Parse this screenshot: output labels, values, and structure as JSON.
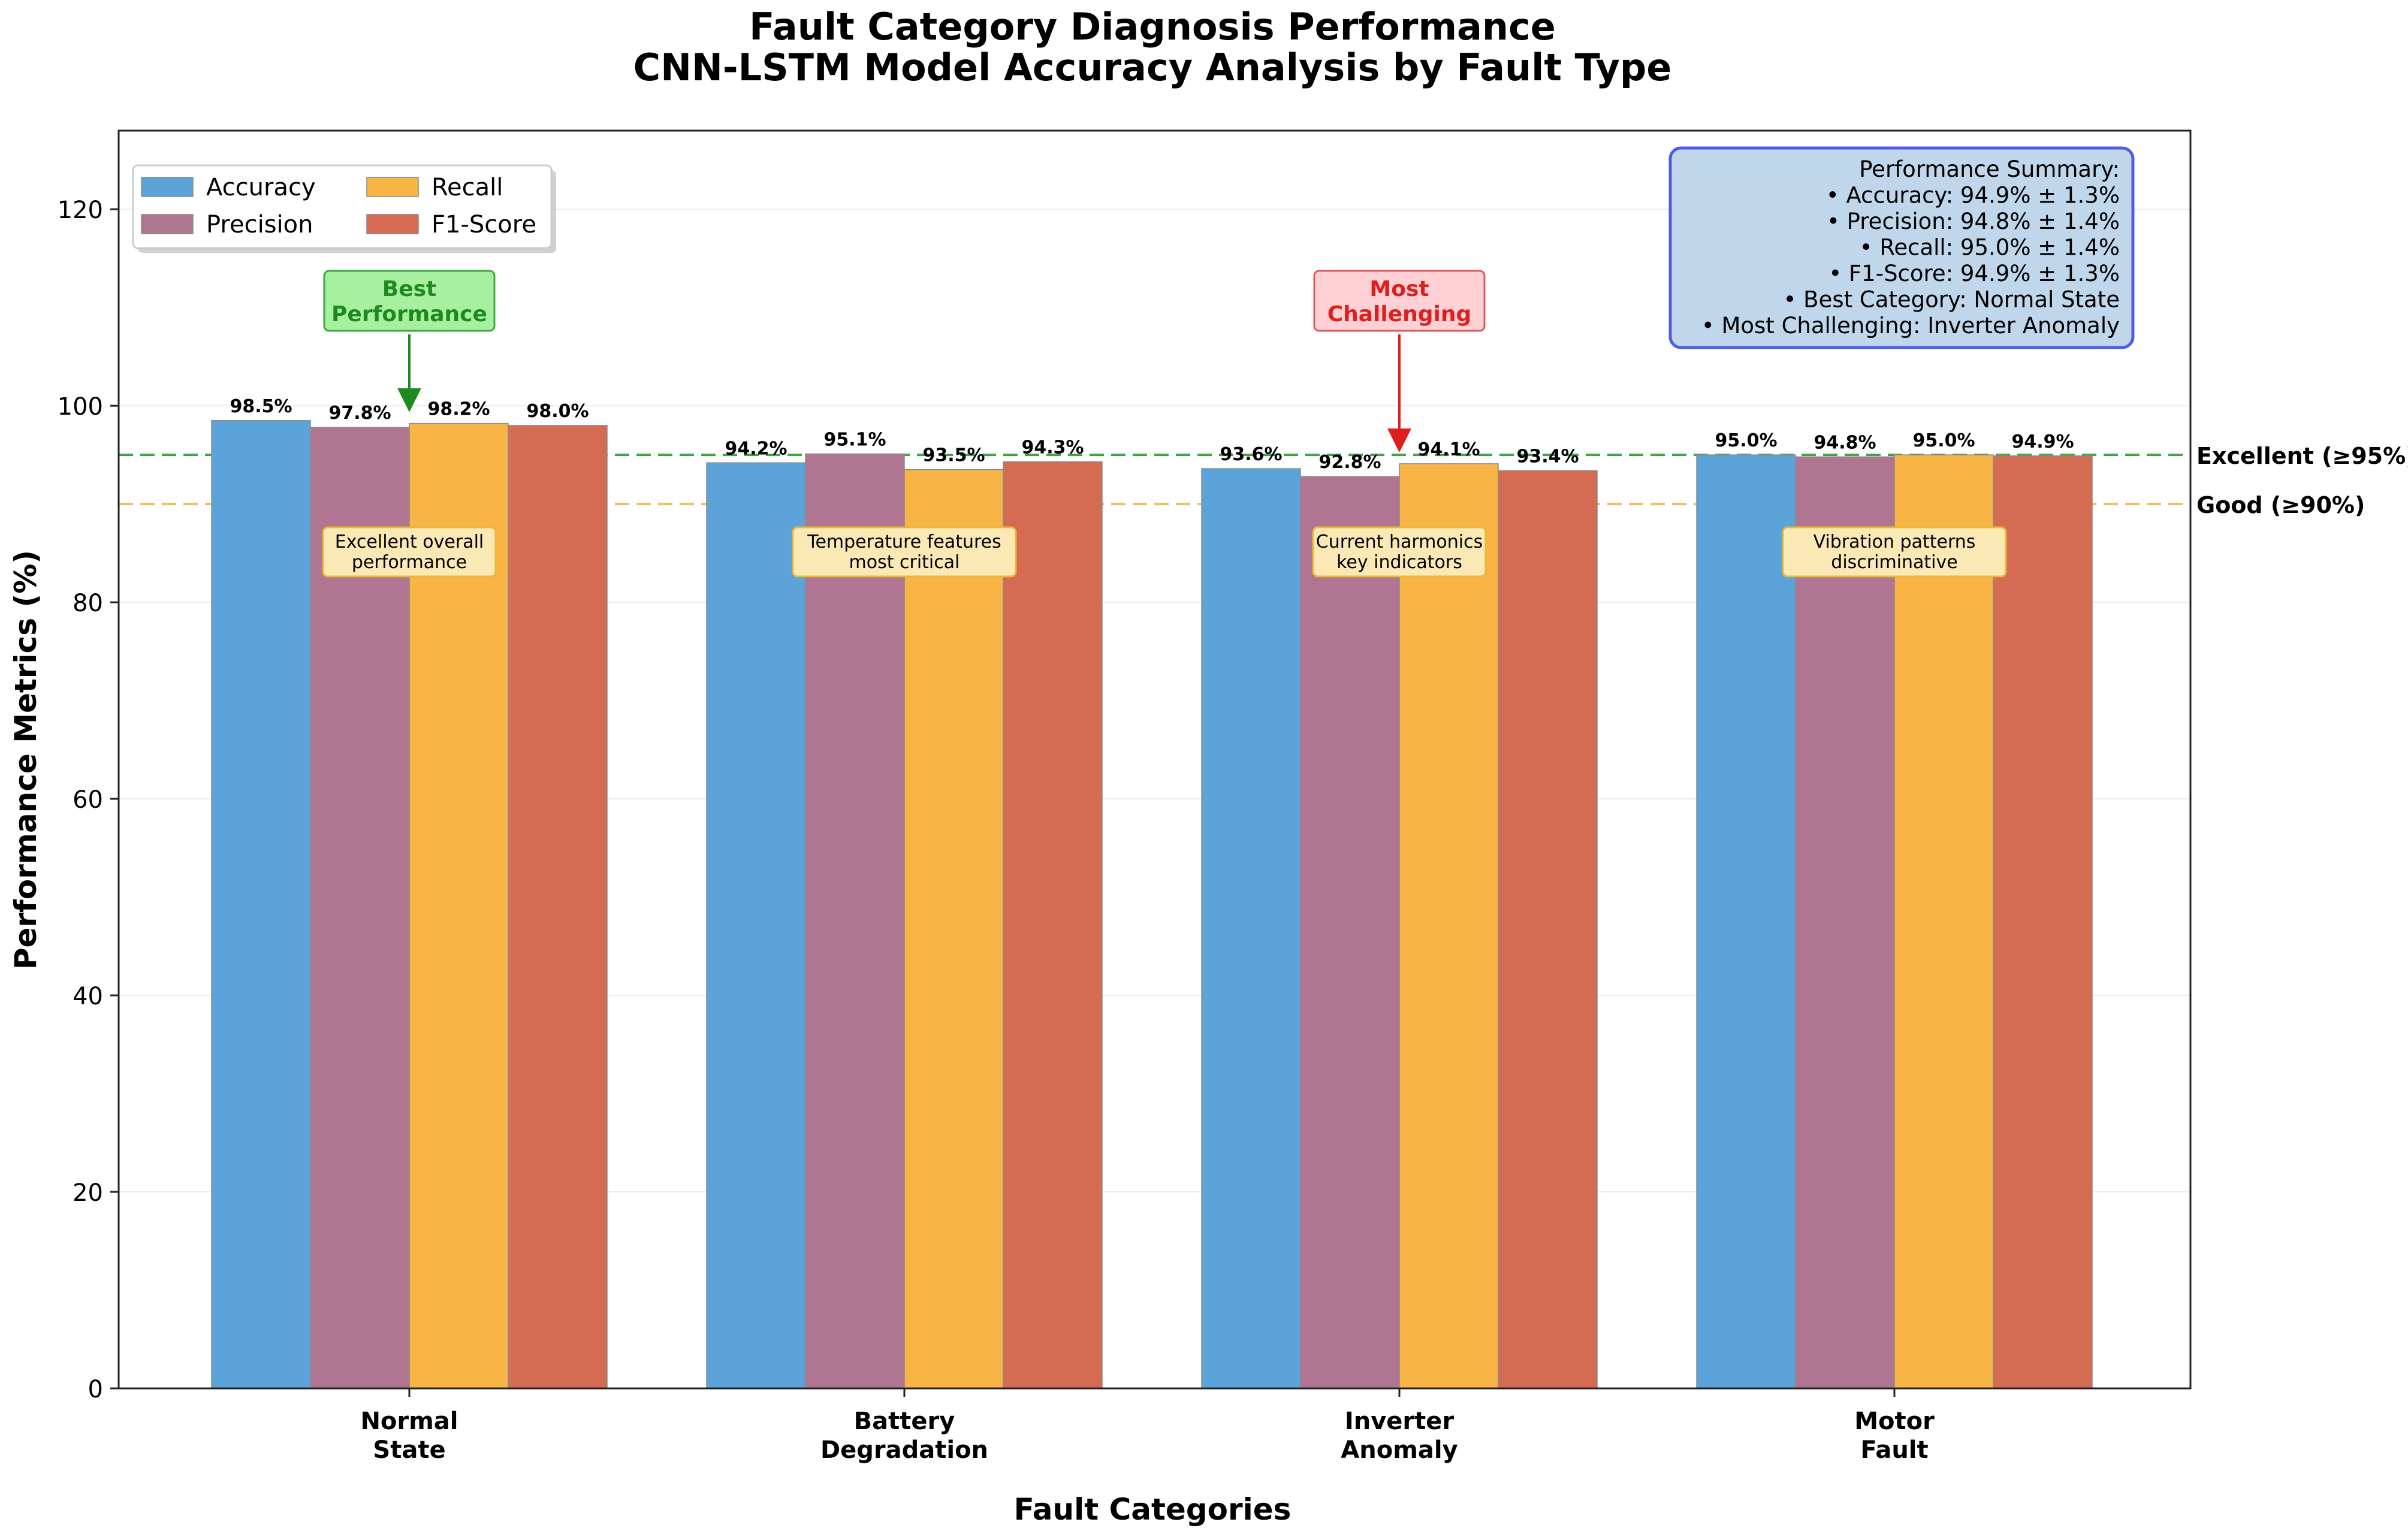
{
  "chart_data": {
    "type": "bar",
    "title": "Fault Category Diagnosis Performance",
    "subtitle": "CNN-LSTM Model Accuracy Analysis by Fault Type",
    "xlabel": "Fault Categories",
    "ylabel": "Performance Metrics (%)",
    "ylim": [
      0,
      128
    ],
    "yticks": [
      "0",
      "20",
      "40",
      "60",
      "80",
      "100",
      "120"
    ],
    "categories": [
      [
        "Normal",
        "State"
      ],
      [
        "Battery",
        "Degradation"
      ],
      [
        "Inverter",
        "Anomaly"
      ],
      [
        "Motor",
        "Fault"
      ]
    ],
    "series": [
      {
        "name": "Accuracy",
        "color": "#5BA3D9",
        "values": [
          98.5,
          94.2,
          93.6,
          95.0
        ],
        "labels": [
          "98.5%",
          "94.2%",
          "93.6%",
          "95.0%"
        ]
      },
      {
        "name": "Precision",
        "color": "#B07590",
        "values": [
          97.8,
          95.1,
          92.8,
          94.8
        ],
        "labels": [
          "97.8%",
          "95.1%",
          "92.8%",
          "94.8%"
        ]
      },
      {
        "name": "Recall",
        "color": "#F8B545",
        "values": [
          98.2,
          93.5,
          94.1,
          95.0
        ],
        "labels": [
          "98.2%",
          "93.5%",
          "94.1%",
          "95.0%"
        ]
      },
      {
        "name": "F1-Score",
        "color": "#D46B52",
        "values": [
          98.0,
          94.3,
          93.4,
          94.9
        ],
        "labels": [
          "98.0%",
          "94.3%",
          "93.4%",
          "94.9%"
        ]
      }
    ],
    "reference_lines": [
      {
        "value": 95,
        "label": "Excellent (≥95%)",
        "color": "#2E9A2E"
      },
      {
        "value": 90,
        "label": "Good (≥90%)",
        "color": "#F8B545"
      }
    ],
    "category_notes": [
      [
        "Excellent overall",
        "performance"
      ],
      [
        "Temperature features",
        "most critical"
      ],
      [
        "Current harmonics",
        "key indicators"
      ],
      [
        "Vibration patterns",
        "discriminative"
      ]
    ],
    "callouts": [
      {
        "category_index": 0,
        "lines": [
          "Best",
          "Performance"
        ],
        "text_color": "#1E8A1E",
        "fill": "#A6F0A0",
        "stroke": "#3DAA3D"
      },
      {
        "category_index": 2,
        "lines": [
          "Most",
          "Challenging"
        ],
        "text_color": "#E01E1E",
        "fill": "#FFD0D4",
        "stroke": "#E05A5A"
      }
    ],
    "summary": {
      "lines": [
        "Performance Summary:",
        "• Accuracy: 94.9% ± 1.3%",
        "• Precision: 94.8% ± 1.4%",
        "• Recall: 95.0% ± 1.4%",
        "• F1-Score: 94.9% ± 1.3%",
        "• Best Category: Normal State",
        "• Most Challenging: Inverter Anomaly"
      ]
    },
    "legend_position": "upper-left",
    "grid": true
  }
}
